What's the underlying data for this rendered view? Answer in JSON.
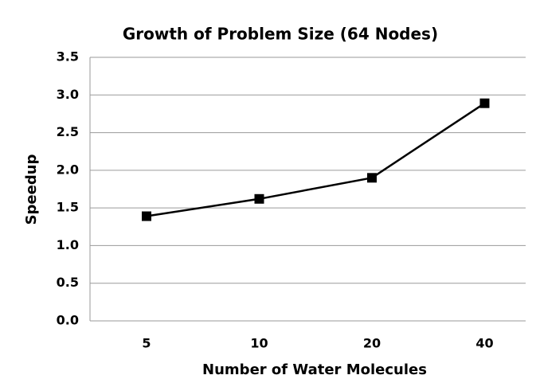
{
  "chart_data": {
    "type": "line",
    "title": "Growth of Problem Size (64 Nodes)",
    "x_label": "Number of Water Molecules",
    "y_label": "Speedup",
    "categories": [
      "5",
      "10",
      "20",
      "40"
    ],
    "values": [
      1.39,
      1.62,
      1.9,
      2.89
    ],
    "color": "#000000",
    "ylim": [
      0,
      3.5
    ],
    "yticks": [
      {
        "value": 0,
        "label": "0.0"
      },
      0.5,
      {
        "value": 1,
        "label": "1.0"
      },
      1.5,
      {
        "value": 2,
        "label": "2.0"
      },
      2.5,
      {
        "value": 3,
        "label": "3.0"
      },
      3.5
    ],
    "grid": true
  }
}
